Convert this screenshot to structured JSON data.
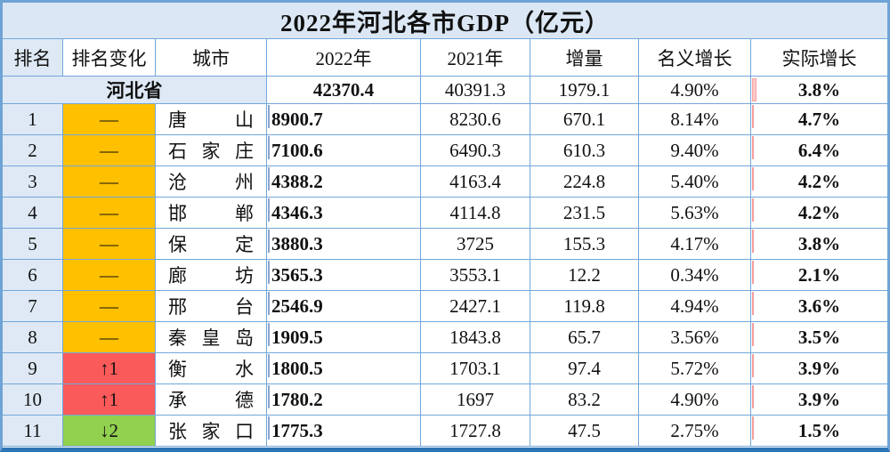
{
  "colors": {
    "grid_line": "#72a7da",
    "outer_border": "#6fa3d6",
    "bottom_border": "#2e75b6",
    "panel_blue": "#dee9f5",
    "title_blue": "#dbe7f4",
    "accent_orange": "#ffc000",
    "accent_red": "#fb5a5a",
    "accent_green": "#92d050",
    "gdp_bar_blue": "#7292c3",
    "real_bar_red": "#f85f5d"
  },
  "chart_data": {
    "type": "table",
    "title": "2022年河北各市GDP（亿元）",
    "columns": [
      "排名",
      "排名变化",
      "城市",
      "2022年",
      "2021年",
      "增量",
      "名义增长",
      "实际增长"
    ],
    "summary_row": {
      "label": "河北省",
      "y2022": "42370.4",
      "y2021": "40391.3",
      "delta": "1979.1",
      "nominal": "4.90%",
      "real": "3.8%"
    },
    "bar_scales": {
      "gdp_max": 8900.7,
      "real_max": 6.4
    },
    "rows": [
      {
        "rank": "1",
        "change": "—",
        "change_dir": "same",
        "city": "唐山",
        "y2022": "8900.7",
        "y2021": "8230.6",
        "delta": "670.1",
        "nominal": "8.14%",
        "real": "4.7%",
        "y2022_num": 8900.7,
        "real_num": 4.7
      },
      {
        "rank": "2",
        "change": "—",
        "change_dir": "same",
        "city": "石家庄",
        "y2022": "7100.6",
        "y2021": "6490.3",
        "delta": "610.3",
        "nominal": "9.40%",
        "real": "6.4%",
        "y2022_num": 7100.6,
        "real_num": 6.4
      },
      {
        "rank": "3",
        "change": "—",
        "change_dir": "same",
        "city": "沧州",
        "y2022": "4388.2",
        "y2021": "4163.4",
        "delta": "224.8",
        "nominal": "5.40%",
        "real": "4.2%",
        "y2022_num": 4388.2,
        "real_num": 4.2
      },
      {
        "rank": "4",
        "change": "—",
        "change_dir": "same",
        "city": "邯郸",
        "y2022": "4346.3",
        "y2021": "4114.8",
        "delta": "231.5",
        "nominal": "5.63%",
        "real": "4.2%",
        "y2022_num": 4346.3,
        "real_num": 4.2
      },
      {
        "rank": "5",
        "change": "—",
        "change_dir": "same",
        "city": "保定",
        "y2022": "3880.3",
        "y2021": "3725",
        "delta": "155.3",
        "nominal": "4.17%",
        "real": "3.8%",
        "y2022_num": 3880.3,
        "real_num": 3.8
      },
      {
        "rank": "6",
        "change": "—",
        "change_dir": "same",
        "city": "廊坊",
        "y2022": "3565.3",
        "y2021": "3553.1",
        "delta": "12.2",
        "nominal": "0.34%",
        "real": "2.1%",
        "y2022_num": 3565.3,
        "real_num": 2.1
      },
      {
        "rank": "7",
        "change": "—",
        "change_dir": "same",
        "city": "邢台",
        "y2022": "2546.9",
        "y2021": "2427.1",
        "delta": "119.8",
        "nominal": "4.94%",
        "real": "3.6%",
        "y2022_num": 2546.9,
        "real_num": 3.6
      },
      {
        "rank": "8",
        "change": "—",
        "change_dir": "same",
        "city": "秦皇岛",
        "y2022": "1909.5",
        "y2021": "1843.8",
        "delta": "65.7",
        "nominal": "3.56%",
        "real": "3.5%",
        "y2022_num": 1909.5,
        "real_num": 3.5
      },
      {
        "rank": "9",
        "change": "↑1",
        "change_dir": "up",
        "city": "衡水",
        "y2022": "1800.5",
        "y2021": "1703.1",
        "delta": "97.4",
        "nominal": "5.72%",
        "real": "3.9%",
        "y2022_num": 1800.5,
        "real_num": 3.9
      },
      {
        "rank": "10",
        "change": "↑1",
        "change_dir": "up",
        "city": "承德",
        "y2022": "1780.2",
        "y2021": "1697",
        "delta": "83.2",
        "nominal": "4.90%",
        "real": "3.9%",
        "y2022_num": 1780.2,
        "real_num": 3.9
      },
      {
        "rank": "11",
        "change": "↓2",
        "change_dir": "down",
        "city": "张家口",
        "y2022": "1775.3",
        "y2021": "1727.8",
        "delta": "47.5",
        "nominal": "2.75%",
        "real": "1.5%",
        "y2022_num": 1775.3,
        "real_num": 1.5
      }
    ]
  }
}
